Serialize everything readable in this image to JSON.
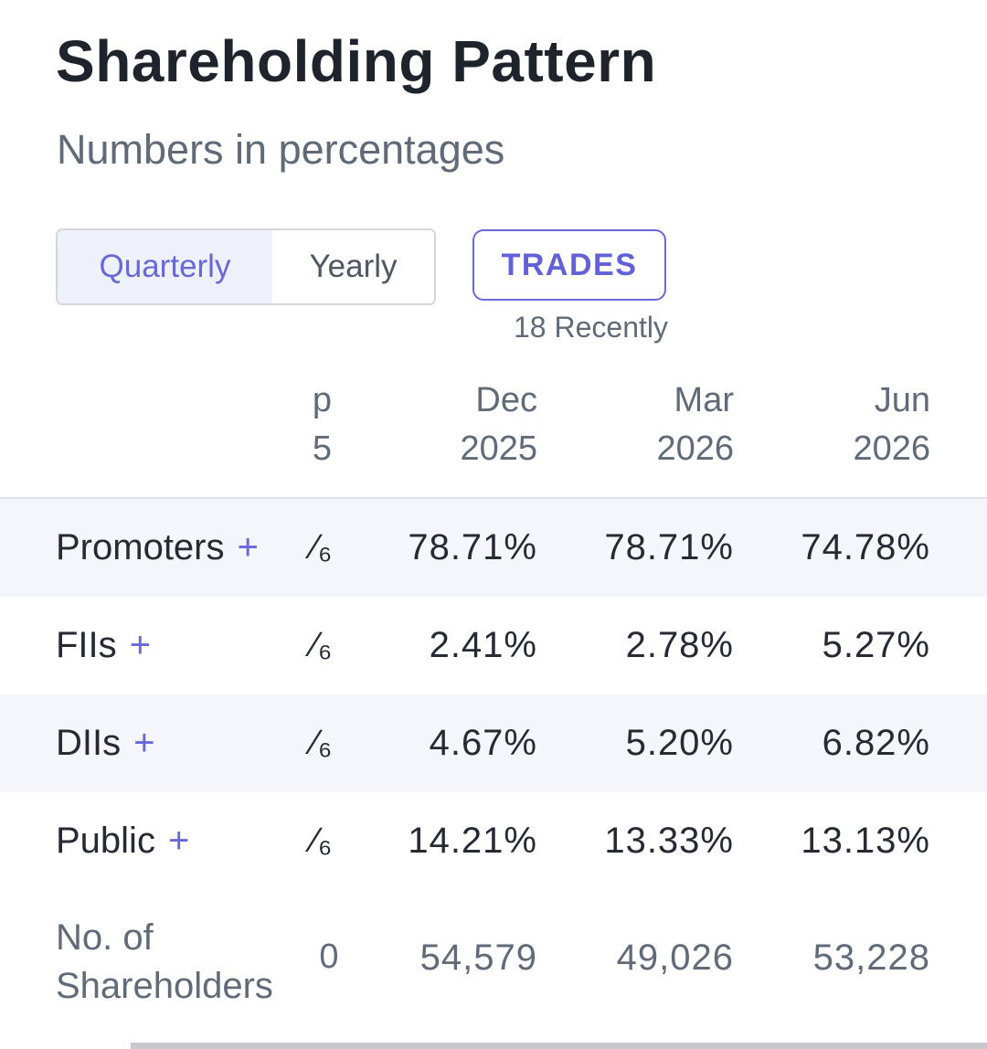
{
  "title": "Shareholding Pattern",
  "subtitle": "Numbers in percentages",
  "toggle": {
    "quarterly": "Quarterly",
    "yearly": "Yearly",
    "selected": "Quarterly"
  },
  "trades": {
    "label": "TRADES",
    "recent": "18 Recently"
  },
  "columns": [
    {
      "line1": "p",
      "line2": "5"
    },
    {
      "line1": "Dec",
      "line2": "2025"
    },
    {
      "line1": "Mar",
      "line2": "2026"
    },
    {
      "line1": "Jun",
      "line2": "2026"
    }
  ],
  "rows": [
    {
      "label": "Promoters",
      "plus": "+",
      "partial": "⁄₆",
      "values": [
        "78.71%",
        "78.71%",
        "74.78%"
      ]
    },
    {
      "label": "FIIs",
      "plus": "+",
      "partial": "⁄₆",
      "values": [
        "2.41%",
        "2.78%",
        "5.27%"
      ]
    },
    {
      "label": "DIIs",
      "plus": "+",
      "partial": "⁄₆",
      "values": [
        "4.67%",
        "5.20%",
        "6.82%"
      ]
    },
    {
      "label": "Public",
      "plus": "+",
      "partial": "⁄₆",
      "values": [
        "14.21%",
        "13.33%",
        "13.13%"
      ]
    }
  ],
  "shareholders": {
    "label_line1": "No. of",
    "label_line2": "Shareholders",
    "partial": "0",
    "values": [
      "54,579",
      "49,026",
      "53,228"
    ]
  },
  "colors": {
    "accent": "#6a68d9",
    "text": "#252a33",
    "muted": "#616b78",
    "row_shade": "#f5f6fb"
  }
}
